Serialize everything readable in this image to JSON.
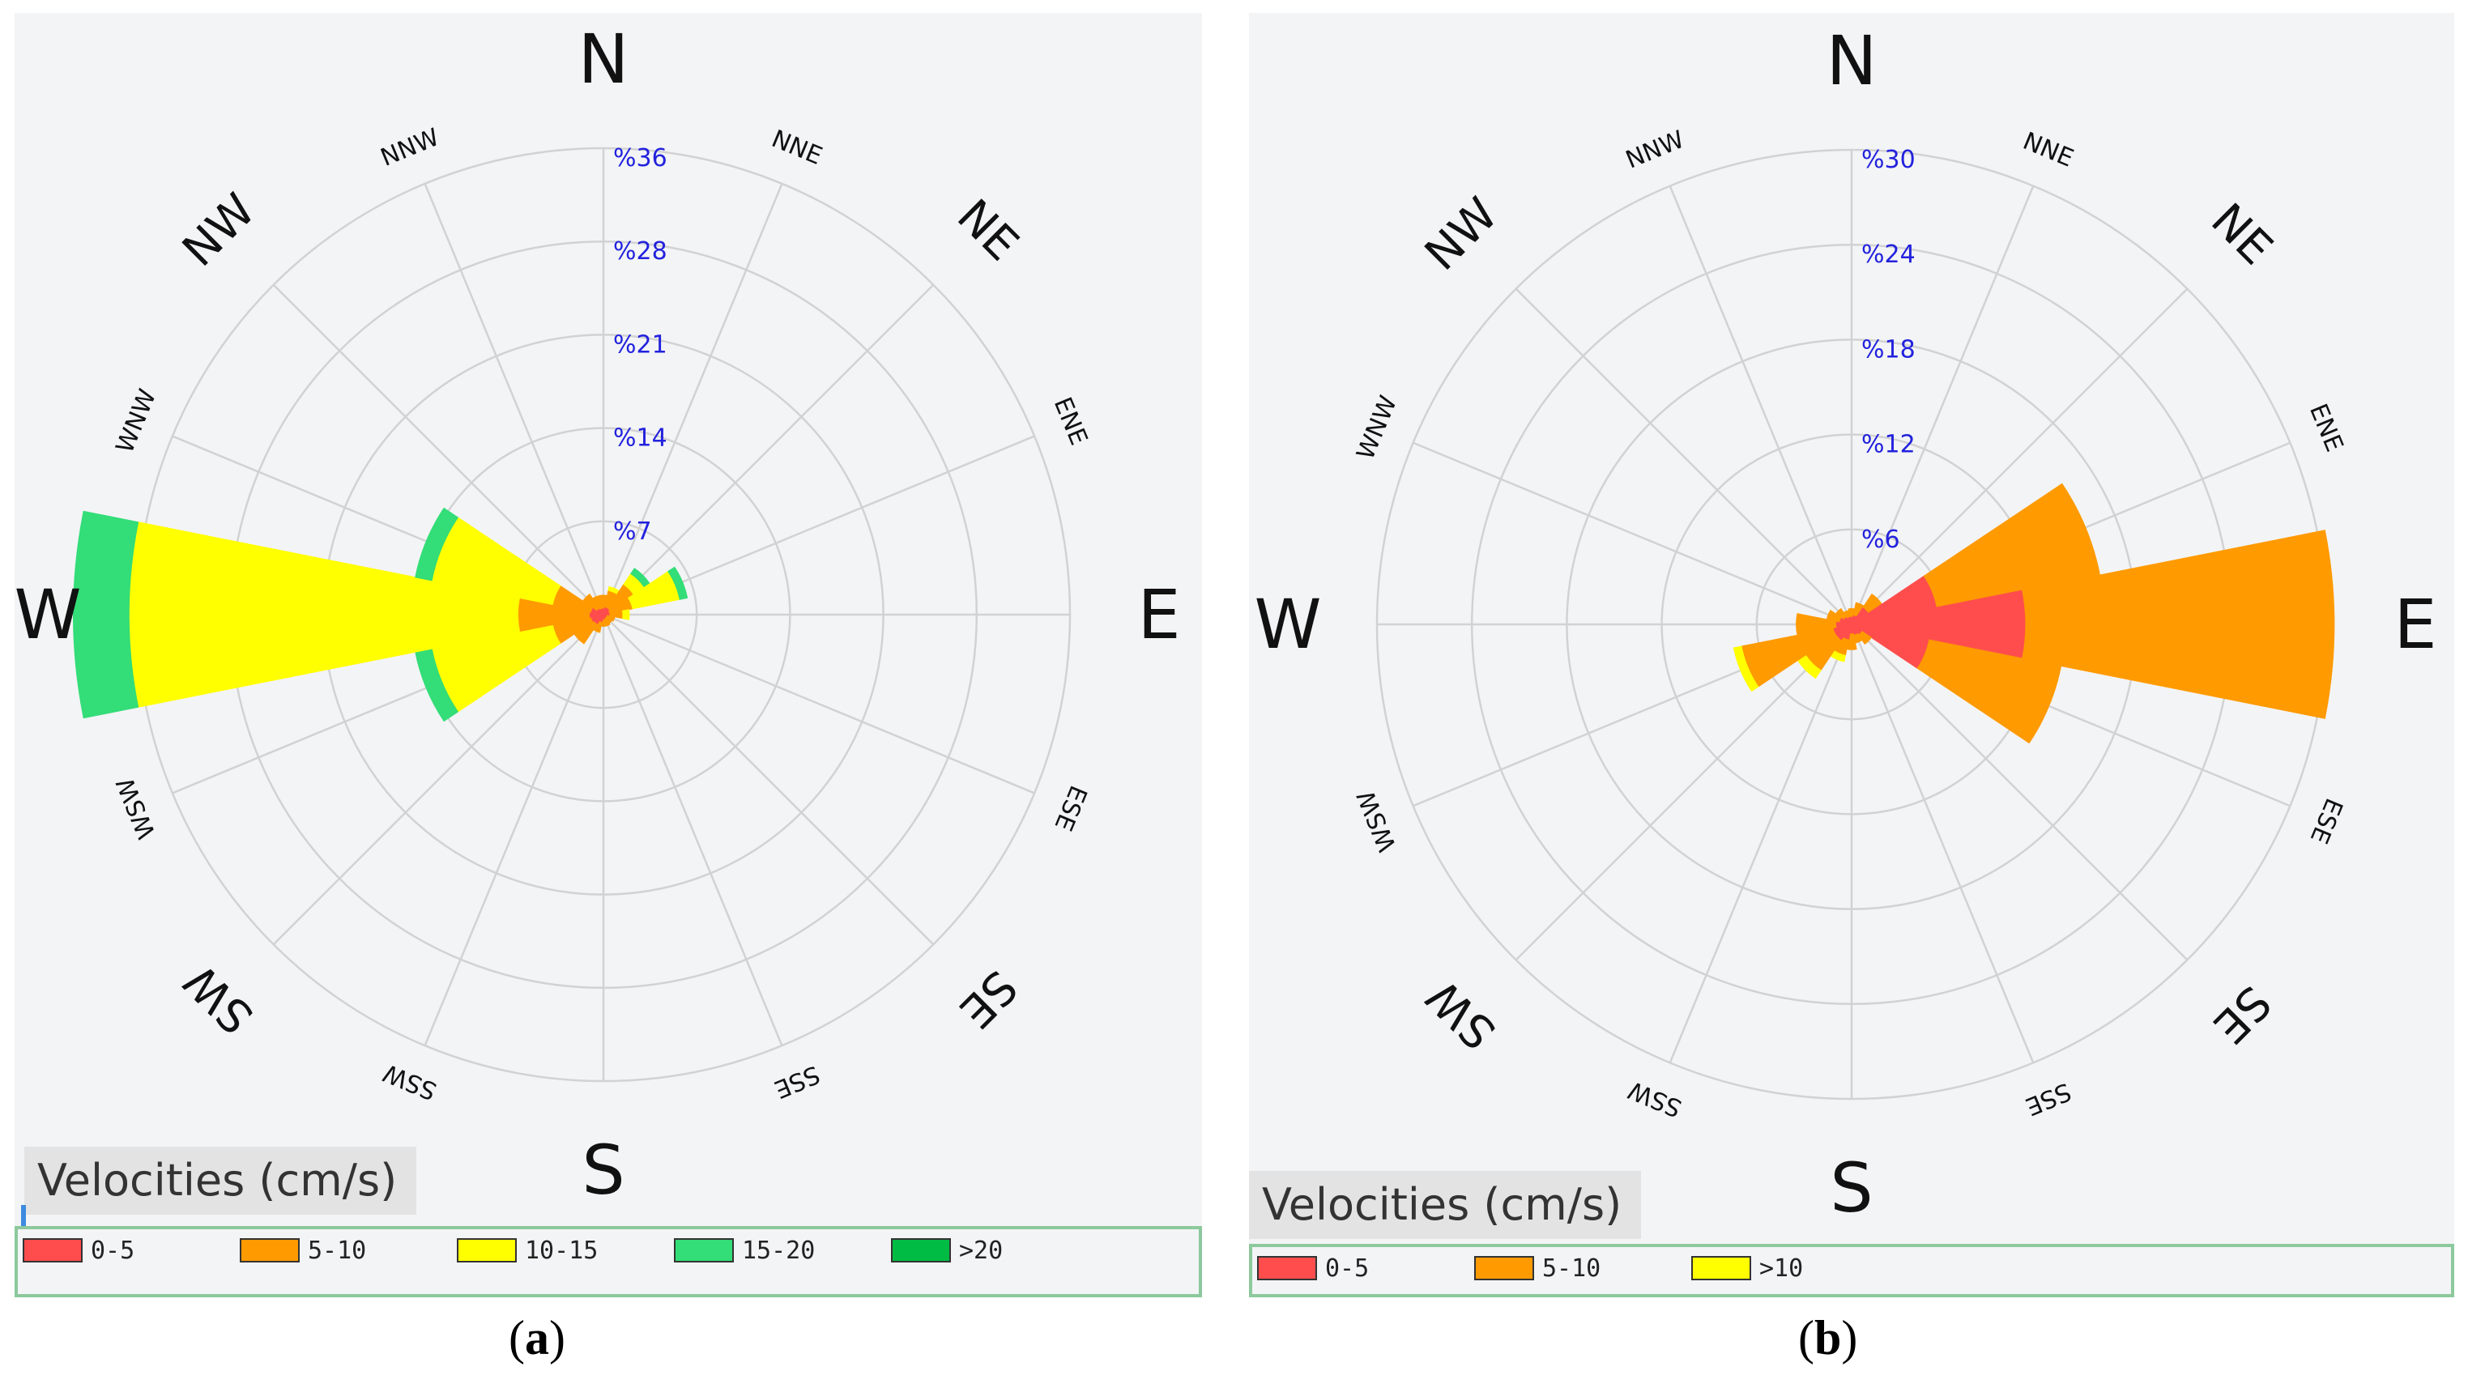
{
  "panels": [
    {
      "id": "a",
      "caption_letter": "a",
      "velocities_title": "Velocities (cm/s)",
      "legend": [
        {
          "label": "0-5",
          "color": "#ff4d4d"
        },
        {
          "label": "5-10",
          "color": "#ff9a00"
        },
        {
          "label": "10-15",
          "color": "#ffff00"
        },
        {
          "label": "15-20",
          "color": "#33dd77"
        },
        {
          "label": ">20",
          "color": "#00bb44"
        }
      ]
    },
    {
      "id": "b",
      "caption_letter": "b",
      "velocities_title": "Velocities (cm/s)",
      "legend": [
        {
          "label": "0-5",
          "color": "#ff4d4d"
        },
        {
          "label": "5-10",
          "color": "#ff9a00"
        },
        {
          "label": ">10",
          "color": "#ffff00"
        }
      ]
    }
  ],
  "chart_data": [
    {
      "type": "polar-bar",
      "panel": "a",
      "directions": [
        "N",
        "NNE",
        "NE",
        "ENE",
        "E",
        "ESE",
        "SE",
        "SSE",
        "S",
        "SSW",
        "SW",
        "WSW",
        "W",
        "WNW",
        "NW",
        "NNW"
      ],
      "direction_labels": [
        "N",
        "NNE",
        "NE",
        "ENE",
        "E",
        "ESE",
        "SE",
        "SSE",
        "S",
        "SSW",
        "SW",
        "WSW",
        "W",
        "WNW",
        "NW",
        "NNW"
      ],
      "radial_ticks": [
        "%7",
        "%14",
        "%21",
        "%28",
        "%36"
      ],
      "rmax": 36,
      "grid": true,
      "series": [
        {
          "name": "0-5",
          "color": "#ff4d4d",
          "values": [
            0.5,
            0.6,
            0.6,
            0.5,
            0.5,
            0.3,
            0.3,
            0.3,
            0.4,
            0.6,
            0.9,
            1.0,
            1.1,
            1.0,
            0.6,
            0.5
          ]
        },
        {
          "name": "5-10",
          "color": "#ff9a00",
          "values": [
            1.0,
            1.3,
            2.2,
            1.8,
            1.0,
            0.6,
            0.5,
            0.6,
            0.5,
            0.8,
            1.8,
            3.0,
            5.5,
            3.0,
            1.3,
            1.0
          ]
        },
        {
          "name": "10-15",
          "color": "#ffff00",
          "values": [
            0,
            0.3,
            1.0,
            3.7,
            0.5,
            0,
            0,
            0,
            0,
            0,
            0,
            9.5,
            30,
            9.5,
            0,
            0
          ]
        },
        {
          "name": "15-20",
          "color": "#33dd77",
          "values": [
            0,
            0,
            0.5,
            0.6,
            0,
            0,
            0,
            0,
            0,
            0,
            0,
            1.3,
            4.3,
            1.3,
            0,
            0
          ]
        },
        {
          "name": ">20",
          "color": "#00bb44",
          "values": [
            0,
            0,
            0,
            0,
            0,
            0,
            0,
            0,
            0,
            0,
            0,
            0,
            0,
            0,
            0,
            0
          ]
        }
      ]
    },
    {
      "type": "polar-bar",
      "panel": "b",
      "directions": [
        "N",
        "NNE",
        "NE",
        "ENE",
        "E",
        "ESE",
        "SE",
        "SSE",
        "S",
        "SSW",
        "SW",
        "WSW",
        "W",
        "WNW",
        "NW",
        "NNW"
      ],
      "direction_labels": [
        "N",
        "NNE",
        "NE",
        "ENE",
        "E",
        "ESE",
        "SE",
        "SSE",
        "S",
        "SSW",
        "SW",
        "WSW",
        "W",
        "WNW",
        "NW",
        "NNW"
      ],
      "radial_ticks": [
        "%6",
        "%12",
        "%18",
        "%24",
        "%30"
      ],
      "rmax": 30,
      "grid": true,
      "series": [
        {
          "name": "0-5",
          "color": "#ff4d4d",
          "values": [
            0.5,
            0.6,
            1.3,
            5.5,
            11.0,
            5.0,
            0.8,
            0.7,
            0.6,
            1.0,
            1.2,
            1.2,
            1.0,
            0.8,
            0.6,
            0.5
          ]
        },
        {
          "name": "5-10",
          "color": "#ff9a00",
          "values": [
            0.5,
            0.8,
            1.0,
            10.5,
            19.5,
            8.5,
            0.7,
            0.5,
            1.0,
            1.0,
            2.3,
            5.9,
            2.5,
            0.8,
            0.6,
            0.4
          ]
        },
        {
          "name": ">10",
          "color": "#ffff00",
          "values": [
            0,
            0,
            0,
            0,
            0,
            0,
            0,
            0,
            0,
            0.4,
            0.6,
            0.5,
            0,
            0,
            0,
            0
          ]
        }
      ]
    }
  ]
}
